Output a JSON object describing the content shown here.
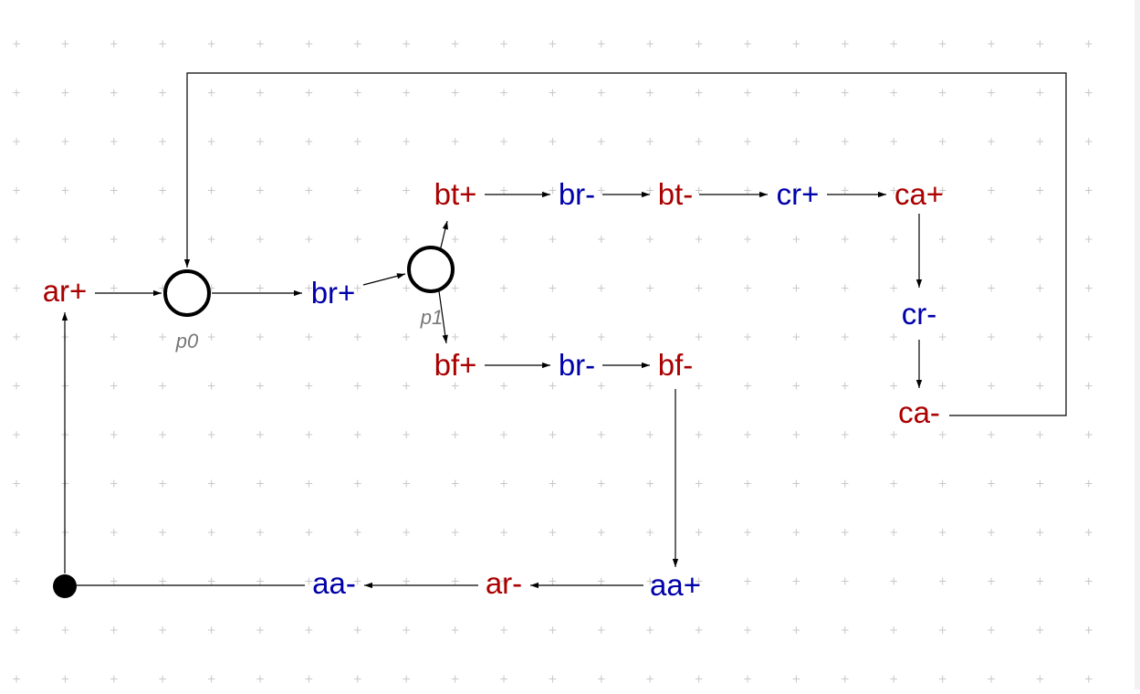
{
  "colors": {
    "output": "#aa0000",
    "input": "#0000aa",
    "place_label": "#777777",
    "arc": "#000000",
    "grid": "#c8c8c8"
  },
  "transitions": {
    "ar_plus": "ar+",
    "br_plus": "br+",
    "bt_plus": "bt+",
    "br_minus_top": "br-",
    "bt_minus": "bt-",
    "cr_plus": "cr+",
    "ca_plus": "ca+",
    "cr_minus": "cr-",
    "ca_minus": "ca-",
    "bf_plus": "bf+",
    "br_minus_bottom": "br-",
    "bf_minus": "bf-",
    "aa_plus": "aa+",
    "ar_minus": "ar-",
    "aa_minus": "aa-"
  },
  "places": {
    "p0": "p0",
    "p1": "p1"
  },
  "marked_place": {
    "icon": "token-dot",
    "tokens": 1
  }
}
